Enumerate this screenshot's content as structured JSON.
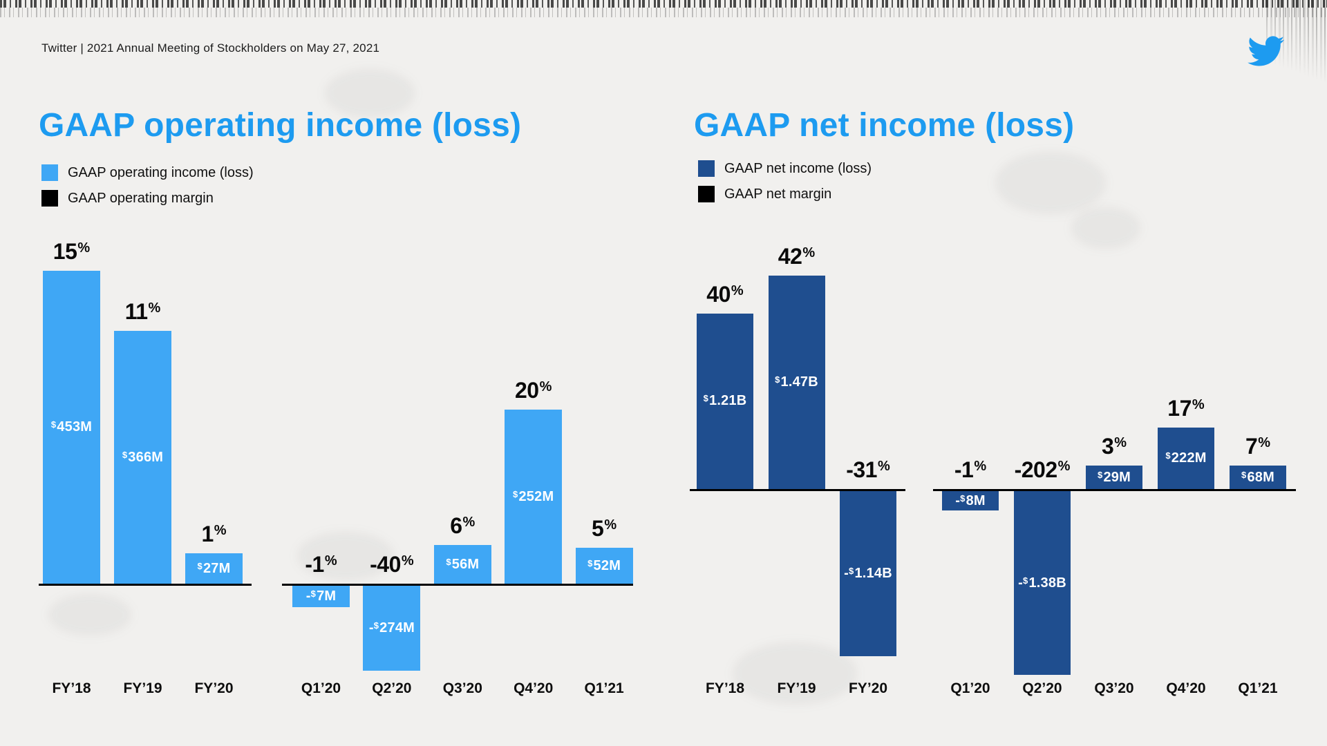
{
  "page": {
    "header": "Twitter | 2021 Annual Meeting of Stockholders on May 27, 2021",
    "logo_icon": "twitter-bird"
  },
  "colors": {
    "title_blue": "#1d9bf0",
    "operating_series_blue": "#3fa7f5",
    "net_series_blue": "#1f4e8f",
    "margin_black": "#000000",
    "background": "#f1f0ee"
  },
  "chart_data": [
    {
      "type": "bar",
      "title": "GAAP operating income (loss)",
      "unit": "USD millions",
      "color": "#3fa7f5",
      "legend": [
        {
          "label": "GAAP operating income (loss)",
          "color": "#3fa7f5"
        },
        {
          "label": "GAAP operating margin",
          "color": "#000000"
        }
      ],
      "layout_hints": {
        "grid": false,
        "legend_position": "top-left",
        "value_labels": "inside-bar",
        "margin_labels": "above-bar",
        "grouped_baselines": [
          "annual",
          "quarterly"
        ]
      },
      "groups": [
        {
          "name": "annual",
          "bars": [
            {
              "category": "FY’18",
              "value_musd": 453,
              "value_label": "$453M",
              "margin_pct": 15,
              "margin_label": "15%"
            },
            {
              "category": "FY’19",
              "value_musd": 366,
              "value_label": "$366M",
              "margin_pct": 11,
              "margin_label": "11%"
            },
            {
              "category": "FY’20",
              "value_musd": 27,
              "value_label": "$27M",
              "margin_pct": 1,
              "margin_label": "1%"
            }
          ]
        },
        {
          "name": "quarterly",
          "bars": [
            {
              "category": "Q1’20",
              "value_musd": -7,
              "value_label": "-$7M",
              "margin_pct": -1,
              "margin_label": "-1%"
            },
            {
              "category": "Q2’20",
              "value_musd": -274,
              "value_label": "-$274M",
              "margin_pct": -40,
              "margin_label": "-40%"
            },
            {
              "category": "Q3’20",
              "value_musd": 56,
              "value_label": "$56M",
              "margin_pct": 6,
              "margin_label": "6%"
            },
            {
              "category": "Q4’20",
              "value_musd": 252,
              "value_label": "$252M",
              "margin_pct": 20,
              "margin_label": "20%"
            },
            {
              "category": "Q1’21",
              "value_musd": 52,
              "value_label": "$52M",
              "margin_pct": 5,
              "margin_label": "5%"
            }
          ]
        }
      ]
    },
    {
      "type": "bar",
      "title": "GAAP net income (loss)",
      "unit": "USD millions",
      "color": "#1f4e8f",
      "legend": [
        {
          "label": "GAAP net income (loss)",
          "color": "#1f4e8f"
        },
        {
          "label": "GAAP net margin",
          "color": "#000000"
        }
      ],
      "layout_hints": {
        "grid": false,
        "legend_position": "top-left",
        "value_labels": "inside-bar",
        "margin_labels": "above-bar",
        "grouped_baselines": [
          "annual",
          "quarterly"
        ]
      },
      "groups": [
        {
          "name": "annual",
          "bars": [
            {
              "category": "FY’18",
              "value_musd": 1210,
              "value_label": "$1.21B",
              "margin_pct": 40,
              "margin_label": "40%"
            },
            {
              "category": "FY’19",
              "value_musd": 1470,
              "value_label": "$1.47B",
              "margin_pct": 42,
              "margin_label": "42%"
            },
            {
              "category": "FY’20",
              "value_musd": -1140,
              "value_label": "-$1.14B",
              "margin_pct": -31,
              "margin_label": "-31%"
            }
          ]
        },
        {
          "name": "quarterly",
          "bars": [
            {
              "category": "Q1’20",
              "value_musd": -8,
              "value_label": "-$8M",
              "margin_pct": -1,
              "margin_label": "-1%"
            },
            {
              "category": "Q2’20",
              "value_musd": -1380,
              "value_label": "-$1.38B",
              "margin_pct": -202,
              "margin_label": "-202%"
            },
            {
              "category": "Q3’20",
              "value_musd": 29,
              "value_label": "$29M",
              "margin_pct": 3,
              "margin_label": "3%"
            },
            {
              "category": "Q4’20",
              "value_musd": 222,
              "value_label": "$222M",
              "margin_pct": 17,
              "margin_label": "17%"
            },
            {
              "category": "Q1’21",
              "value_musd": 68,
              "value_label": "$68M",
              "margin_pct": 7,
              "margin_label": "7%"
            }
          ]
        }
      ]
    }
  ]
}
